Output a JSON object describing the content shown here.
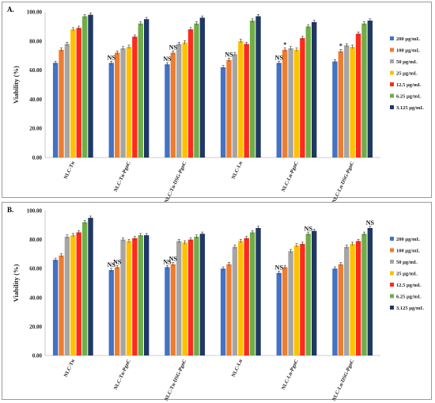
{
  "series": [
    {
      "name": "200 µg/mL",
      "color": "#4472c4"
    },
    {
      "name": "100 µg/mL",
      "color": "#ed7d31"
    },
    {
      "name": "50 µg/mL",
      "color": "#a5a5a5"
    },
    {
      "name": "25 µg/mL",
      "color": "#ffc000"
    },
    {
      "name": "12.5 µg/mL",
      "color": "#ff2a1a"
    },
    {
      "name": "6.25 µg/mL",
      "color": "#70ad47"
    },
    {
      "name": "3.125 µg/mL",
      "color": "#203864"
    }
  ],
  "chart_data": [
    {
      "panel": "A.",
      "type": "bar",
      "ylabel": "Viability (%)",
      "ylim": [
        0,
        100
      ],
      "yticks": [
        "0.00",
        "20.00",
        "40.00",
        "60.00",
        "80.00",
        "100.00"
      ],
      "grid": false,
      "legend": "right",
      "categories": [
        "NLC-Tn",
        "NLC-Tn-PgnC",
        "NLC-Tn-DSG-PgnC",
        "NLC-Ln",
        "NLC-Ln-PgnC",
        "NLC-Ln-DSG-PgnC"
      ],
      "series": [
        {
          "name": "200 µg/mL",
          "values": [
            65,
            65,
            64,
            62,
            65,
            66
          ]
        },
        {
          "name": "100 µg/mL",
          "values": [
            74,
            72,
            72,
            67,
            74,
            73
          ]
        },
        {
          "name": "50 µg/mL",
          "values": [
            78,
            75,
            78,
            71,
            75,
            77
          ]
        },
        {
          "name": "25 µg/mL",
          "values": [
            88,
            76,
            79,
            80,
            74,
            76
          ]
        },
        {
          "name": "12.5 µg/mL",
          "values": [
            89,
            83,
            88,
            78,
            82,
            85
          ]
        },
        {
          "name": "6.25 µg/mL",
          "values": [
            97,
            92,
            92,
            94,
            90,
            92
          ]
        },
        {
          "name": "3.125 µg/mL",
          "values": [
            98,
            95,
            96,
            97,
            93,
            94
          ]
        }
      ],
      "annotations": [
        {
          "category": 1,
          "series": 0,
          "text": "NS"
        },
        {
          "category": 2,
          "series": 0,
          "text": "NS"
        },
        {
          "category": 2,
          "series": 1,
          "text": "NS"
        },
        {
          "category": 3,
          "series": 1,
          "text": "NS"
        },
        {
          "category": 4,
          "series": 0,
          "text": "NS"
        },
        {
          "category": 4,
          "series": 1,
          "text": "*"
        },
        {
          "category": 5,
          "series": 1,
          "text": "*"
        }
      ]
    },
    {
      "panel": "B.",
      "type": "bar",
      "ylabel": "Viability (%)",
      "ylim": [
        0,
        100
      ],
      "yticks": [
        "0.00",
        "20.00",
        "40.00",
        "60.00",
        "80.00",
        "100.00"
      ],
      "grid": false,
      "legend": "right",
      "categories": [
        "NLC-Tn",
        "NLC-Tn-PgnC",
        "NLC-Tn-DSG-PgnC",
        "NLC-Ln",
        "NLC-Ln-PgnC",
        "NLC-Ln-DSG-PgnC"
      ],
      "series": [
        {
          "name": "200 µg/mL",
          "values": [
            66,
            59,
            61,
            60,
            57,
            60
          ]
        },
        {
          "name": "100 µg/mL",
          "values": [
            69,
            61,
            63,
            63,
            61,
            63
          ]
        },
        {
          "name": "50 µg/mL",
          "values": [
            82,
            80,
            79,
            75,
            72,
            75
          ]
        },
        {
          "name": "25 µg/mL",
          "values": [
            83,
            79,
            78,
            79,
            76,
            77
          ]
        },
        {
          "name": "12.5 µg/mL",
          "values": [
            85,
            81,
            80,
            81,
            77,
            79
          ]
        },
        {
          "name": "6.25 µg/mL",
          "values": [
            92,
            83,
            82,
            85,
            84,
            84
          ]
        },
        {
          "name": "3.125 µg/mL",
          "values": [
            95,
            83,
            84,
            88,
            86,
            88
          ]
        }
      ],
      "annotations": [
        {
          "category": 1,
          "series": 0,
          "text": "NS"
        },
        {
          "category": 1,
          "series": 1,
          "text": "NS"
        },
        {
          "category": 2,
          "series": 0,
          "text": "NS"
        },
        {
          "category": 2,
          "series": 1,
          "text": "NS"
        },
        {
          "category": 4,
          "series": 0,
          "text": "NS"
        },
        {
          "category": 4,
          "series": 5,
          "text": "NS"
        },
        {
          "category": 5,
          "series": 6,
          "text": "NS"
        }
      ]
    }
  ]
}
